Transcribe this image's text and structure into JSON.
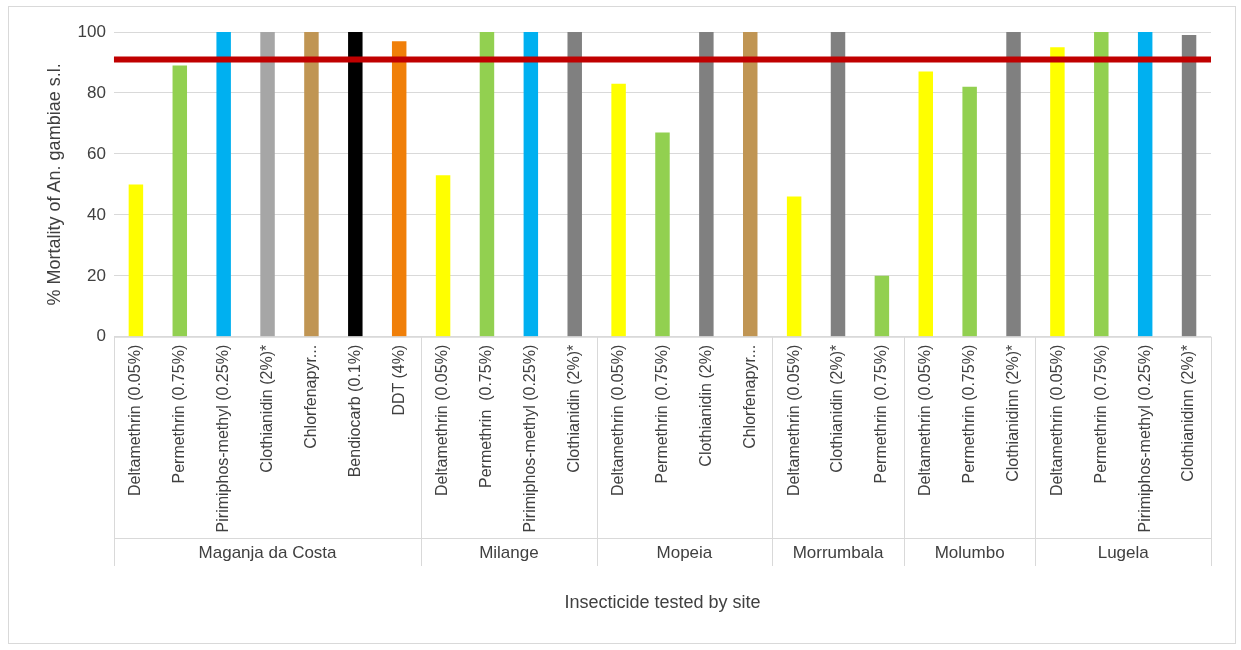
{
  "chart_data": {
    "type": "bar",
    "xlabel": "Insecticide tested by site",
    "ylabel": "% Mortality of An. gambiae s.l.",
    "categories": [
      "Deltamethrin (0.05%)",
      "Permethrin (0.75%)",
      "Pirimiphos-methyl (0.25%)",
      "Clothianidin (2%)*",
      "Chlorfenapyr...",
      "Bendiocarb (0.1%)",
      "DDT (4%)",
      "Deltamethrin (0.05%)",
      "Permethrin  (0.75%)",
      "Pirimiphos-methyl (0.25%)",
      "Clothianidin (2%)*",
      "Deltamethrin (0.05%)",
      "Permethrin (0.75%)",
      "Clothianidin (2%)",
      "Chlorfenapyr...",
      "Deltamethrin (0.05%)",
      "Clothianidin (2%)*",
      "Permethrin (0.75%)",
      "Deltamethrin (0.05%)",
      "Permethrin (0.75%)",
      "Clothianidinn (2%)*",
      "Deltamethrin (0.05%)",
      "Permethrin (0.75%)",
      "Pirimiphos-methyl (0.25%)",
      "Clothianidinn (2%)*"
    ],
    "values": [
      50,
      89,
      100,
      100,
      100,
      100,
      97,
      53,
      100,
      100,
      100,
      83,
      67,
      100,
      100,
      46,
      100,
      20,
      87,
      82,
      100,
      95,
      100,
      100,
      99
    ],
    "colors": [
      "#ffff00",
      "#92d050",
      "#00b0f0",
      "#a6a6a6",
      "#c09553",
      "#000000",
      "#f07f09",
      "#ffff00",
      "#92d050",
      "#00b0f0",
      "#808080",
      "#ffff00",
      "#92d050",
      "#808080",
      "#c09553",
      "#ffff00",
      "#808080",
      "#92d050",
      "#ffff00",
      "#92d050",
      "#808080",
      "#ffff00",
      "#92d050",
      "#00b0f0",
      "#808080"
    ],
    "annotations": [
      "Maganja da Costa",
      "Milange",
      "Mopeia",
      "Morrumbala",
      "Molumbo",
      "Lugela"
    ],
    "ylim": [
      0,
      100
    ],
    "yticks": [
      0,
      20,
      40,
      60,
      80,
      100
    ],
    "grid": "y",
    "legend": false,
    "ref_lines": [
      {
        "axis": "y",
        "value": 91,
        "color": "#c00000"
      }
    ]
  }
}
